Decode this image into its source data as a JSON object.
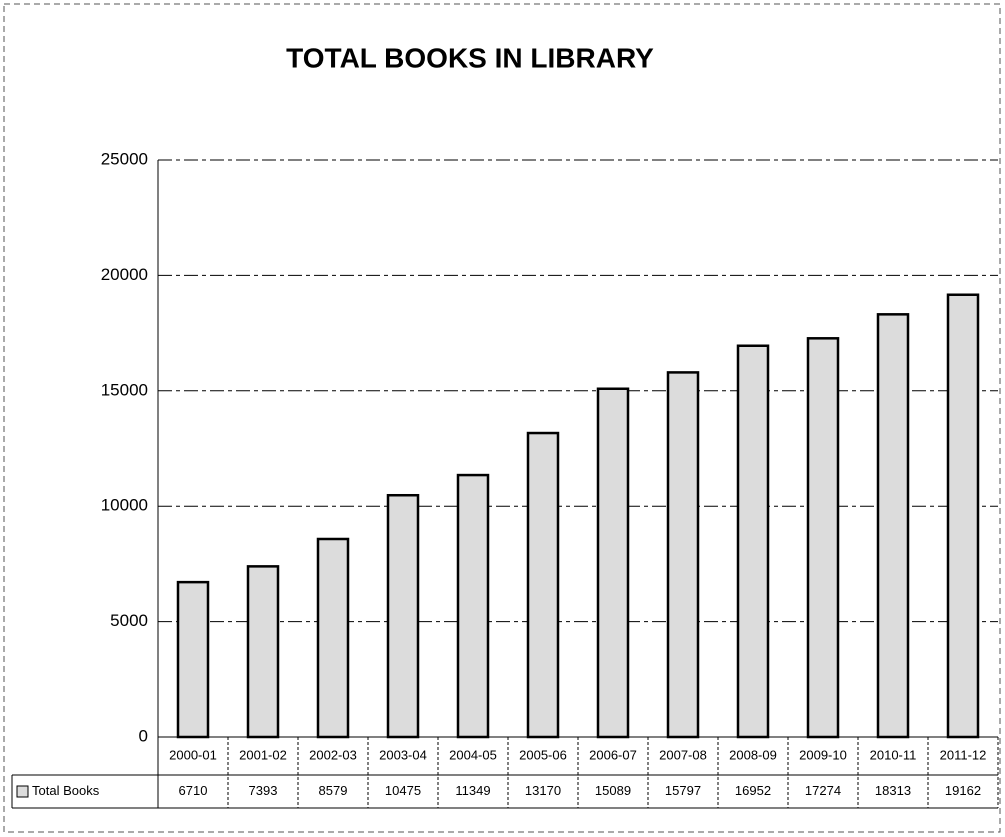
{
  "chart_data": {
    "type": "bar",
    "title": "TOTAL BOOKS IN LIBRARY",
    "categories": [
      "2000-01",
      "2001-02",
      "2002-03",
      "2003-04",
      "2004-05",
      "2005-06",
      "2006-07",
      "2007-08",
      "2008-09",
      "2009-10",
      "2010-11",
      "2011-12"
    ],
    "series": [
      {
        "name": "Total Books",
        "color": "#dcdcdc",
        "values": [
          6710,
          7393,
          8579,
          10475,
          11349,
          13170,
          15089,
          15797,
          16952,
          17274,
          18313,
          19162
        ]
      }
    ],
    "ylim": [
      0,
      25000
    ],
    "yticks": [
      0,
      5000,
      10000,
      15000,
      20000,
      25000
    ],
    "grid": true
  }
}
